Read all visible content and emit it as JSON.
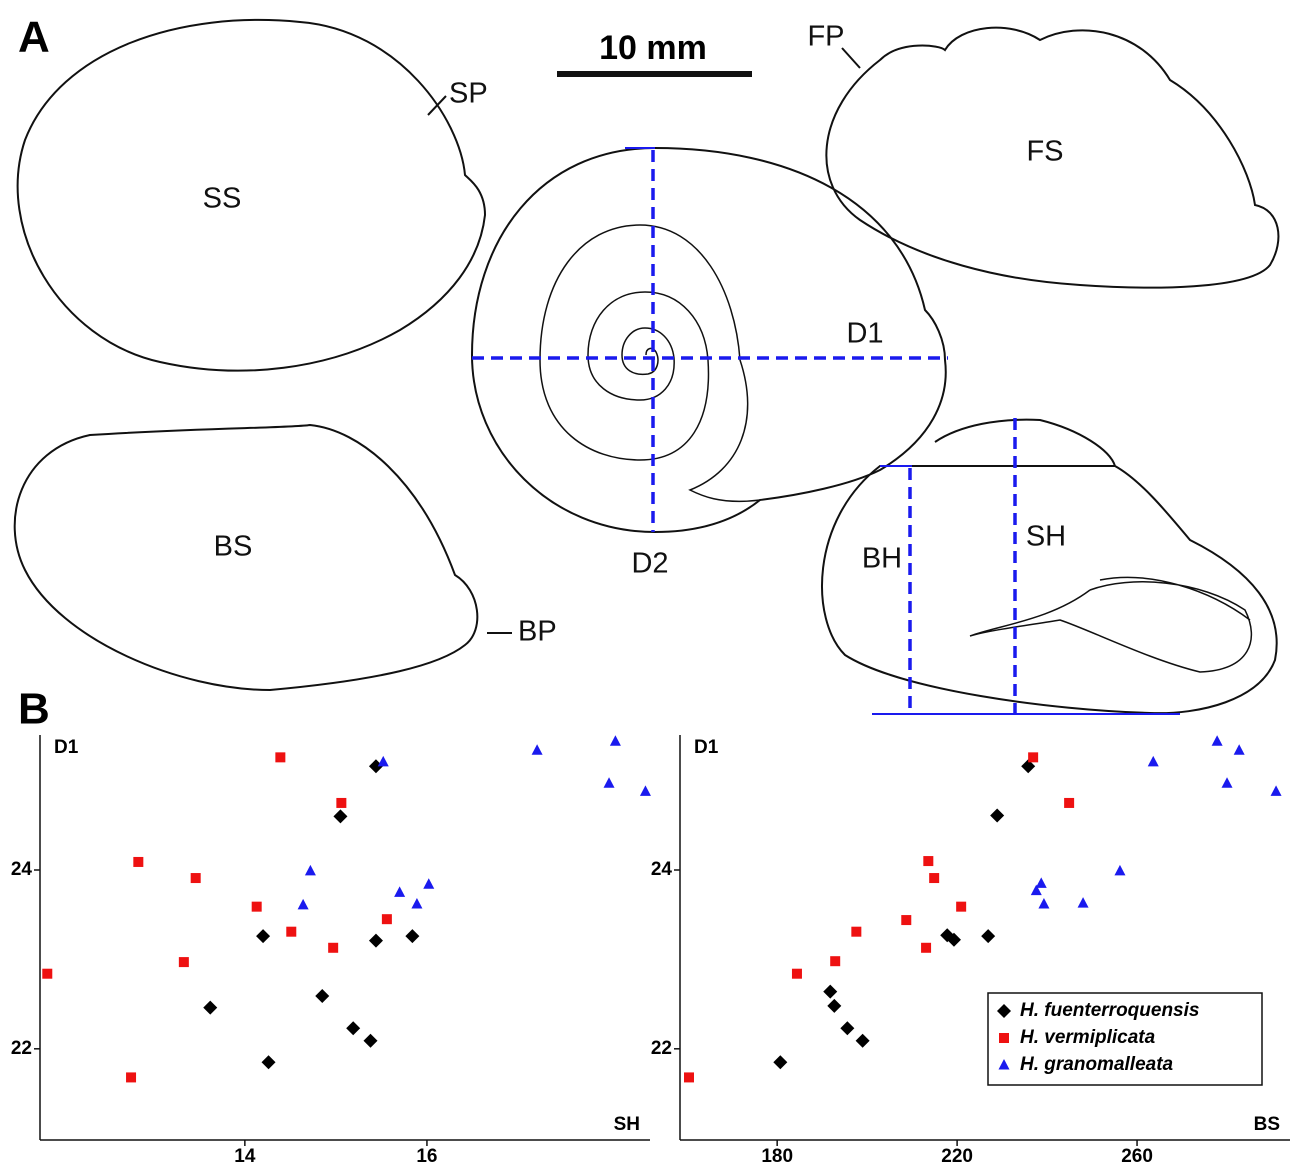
{
  "panels": {
    "a": "A",
    "b": "B"
  },
  "scale_bar": "10 mm",
  "shell_labels": {
    "ss": "SS",
    "sp": "SP",
    "fp": "FP",
    "fs": "FS",
    "d1": "D1",
    "d2": "D2",
    "bs": "BS",
    "bp": "BP",
    "bh": "BH",
    "sh": "SH"
  },
  "chart_data": [
    {
      "type": "scatter",
      "y_label": "D1",
      "x_label": "SH",
      "xlim": [
        11.75,
        18.45
      ],
      "ylim": [
        20.98,
        25.51
      ],
      "xticks": [
        14,
        16
      ],
      "yticks": [
        22,
        24
      ],
      "legend": false,
      "series": [
        {
          "color": "#000000",
          "marker": "diamond",
          "x": [
            15.44,
            15.05,
            14.2,
            15.44,
            15.84,
            13.62,
            14.85,
            15.19,
            15.38,
            14.26
          ],
          "values": [
            25.16,
            24.6,
            23.26,
            23.21,
            23.26,
            22.46,
            22.59,
            22.23,
            22.09,
            21.85
          ]
        },
        {
          "color": "#ee1111",
          "marker": "square",
          "x": [
            14.39,
            15.06,
            12.83,
            13.46,
            14.13,
            14.51,
            15.56,
            14.97,
            13.33,
            11.83,
            12.75
          ],
          "values": [
            25.26,
            24.75,
            24.09,
            23.91,
            23.59,
            23.31,
            23.45,
            23.13,
            22.97,
            22.84,
            21.68
          ]
        },
        {
          "color": "#1a1aee",
          "marker": "triangle",
          "x": [
            15.52,
            17.21,
            18.07,
            18.0,
            18.4,
            14.72,
            14.64,
            15.7,
            16.02,
            15.89
          ],
          "values": [
            25.21,
            25.34,
            25.44,
            24.97,
            24.88,
            23.99,
            23.61,
            23.75,
            23.84,
            23.62
          ]
        }
      ]
    },
    {
      "type": "scatter",
      "y_label": "D1",
      "x_label": "BS",
      "xlim": [
        158.4,
        294
      ],
      "ylim": [
        20.98,
        25.51
      ],
      "xticks": [
        180,
        220,
        260
      ],
      "yticks": [
        22,
        24
      ],
      "legend": "lower right",
      "series": [
        {
          "name": "H. fuenterroquensis",
          "color": "#000000",
          "marker": "diamond",
          "x": [
            235.8,
            228.9,
            217.8,
            219.3,
            226.9,
            191.8,
            192.7,
            195.6,
            199.0,
            180.7
          ],
          "values": [
            25.16,
            24.61,
            23.27,
            23.22,
            23.26,
            22.64,
            22.48,
            22.23,
            22.09,
            21.85
          ]
        },
        {
          "name": "H. vermiplicata",
          "color": "#ee1111",
          "marker": "square",
          "x": [
            236.9,
            244.9,
            213.6,
            214.9,
            220.9,
            208.7,
            213.1,
            197.6,
            192.9,
            184.4,
            160.4
          ],
          "values": [
            25.26,
            24.75,
            24.1,
            23.91,
            23.59,
            23.44,
            23.13,
            23.31,
            22.98,
            22.84,
            21.68
          ]
        },
        {
          "name": "H. granomalleata",
          "color": "#1a1aee",
          "marker": "triangle",
          "x": [
            263.6,
            277.8,
            282.7,
            280.0,
            290.9,
            256.2,
            248.0,
            238.7,
            237.6,
            239.3
          ],
          "values": [
            25.21,
            25.44,
            25.34,
            24.97,
            24.88,
            23.99,
            23.63,
            23.85,
            23.77,
            23.62
          ]
        }
      ]
    }
  ]
}
